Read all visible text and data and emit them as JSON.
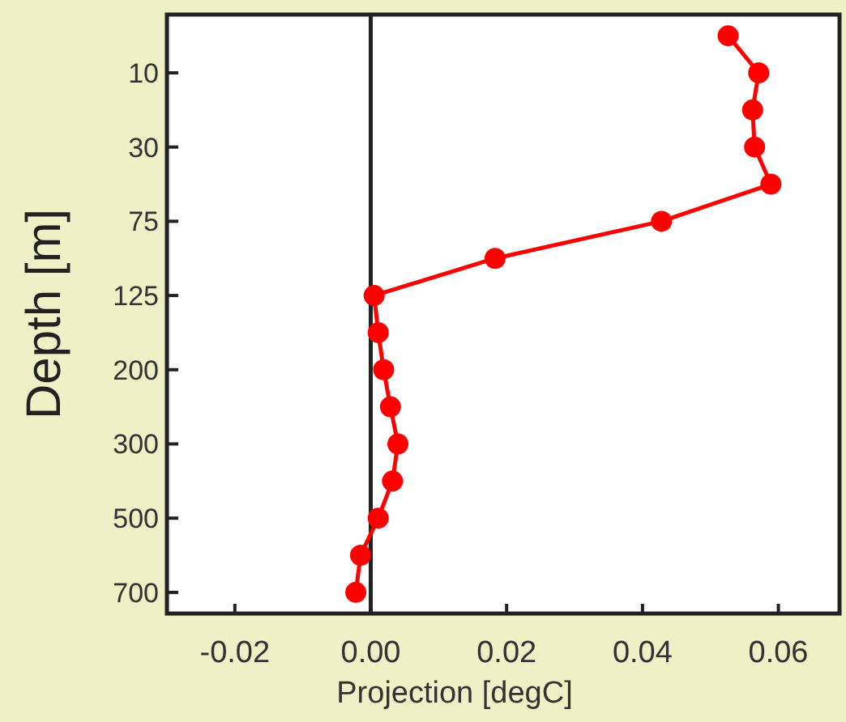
{
  "chart_data": {
    "type": "line",
    "orientation": "horizontal",
    "xlabel": "Projection [degC]",
    "ylabel": "Depth [m]",
    "categories": [
      null,
      "10",
      null,
      "30",
      null,
      "75",
      null,
      "125",
      null,
      "200",
      null,
      "300",
      null,
      "500",
      null,
      "700"
    ],
    "series": [
      {
        "color": "#ff0000",
        "values": [
          0.0526,
          0.0571,
          0.0562,
          0.0565,
          0.0589,
          0.0428,
          0.0183,
          0.0005,
          0.0011,
          0.0019,
          0.0029,
          0.004,
          0.0032,
          0.0011,
          -0.0015,
          -0.0022
        ]
      }
    ],
    "xlim": [
      -0.03,
      0.069
    ],
    "xticks": [
      -0.02,
      {
        "value": 0,
        "label": "0.00"
      },
      0.02,
      0.04,
      0.06
    ],
    "ref_lines": [
      {
        "axis": "x",
        "value": 0,
        "color": "#222222"
      }
    ],
    "marker": "circle",
    "line_style": "solid",
    "grid": false
  }
}
